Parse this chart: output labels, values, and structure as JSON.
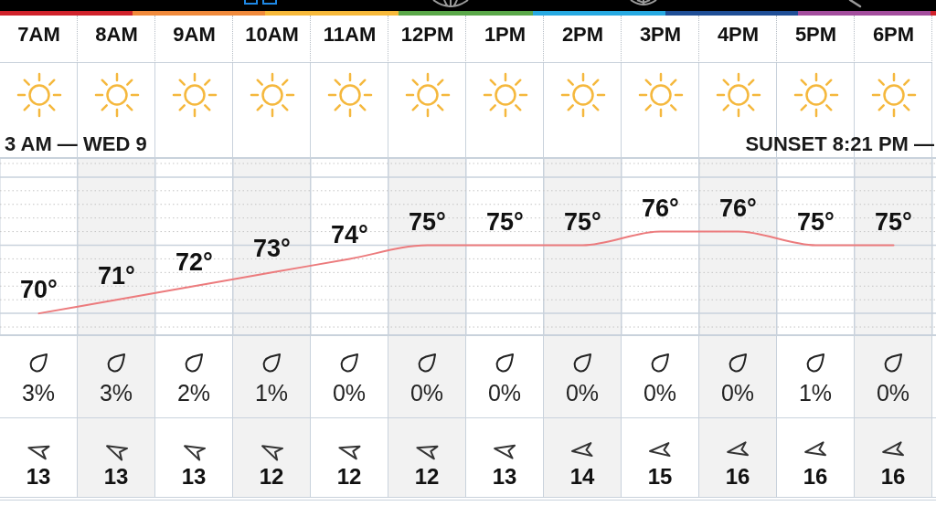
{
  "chart_data": [
    {
      "type": "line",
      "categories": [
        "7AM",
        "8AM",
        "9AM",
        "10AM",
        "11AM",
        "12PM",
        "1PM",
        "2PM",
        "3PM",
        "4PM",
        "5PM",
        "6PM"
      ],
      "values": [
        70,
        71,
        72,
        73,
        74,
        75,
        75,
        75,
        76,
        76,
        75,
        75
      ],
      "color": "#ec7b7d",
      "value_labels": [
        "70°",
        "71°",
        "72°",
        "73°",
        "74°",
        "75°",
        "75°",
        "75°",
        "76°",
        "76°",
        "75°",
        "75°"
      ],
      "ylim": [
        68.4,
        81.4
      ],
      "yticks": [
        {
          "value": 69,
          "label": null
        },
        {
          "value": 70,
          "label": null
        },
        {
          "value": 71,
          "label": null
        },
        {
          "value": 72,
          "label": null
        },
        {
          "value": 73,
          "label": null
        },
        {
          "value": 74,
          "label": null
        },
        {
          "value": 75,
          "label": null
        },
        {
          "value": 76,
          "label": null
        },
        {
          "value": 77,
          "label": null
        },
        {
          "value": 78,
          "label": null
        },
        {
          "value": 79,
          "label": null
        },
        {
          "value": 80,
          "label": null
        },
        {
          "value": 81,
          "label": null
        }
      ],
      "grid": true,
      "tick_labels": "x",
      "bands": [
        {
          "axis": "x",
          "from": "8AM",
          "to": "8AM",
          "color": "#f2f2f2"
        },
        {
          "axis": "x",
          "from": "10AM",
          "to": "10AM",
          "color": "#f2f2f2"
        },
        {
          "axis": "x",
          "from": "12PM",
          "to": "12PM",
          "color": "#f2f2f2"
        },
        {
          "axis": "x",
          "from": "2PM",
          "to": "2PM",
          "color": "#f2f2f2"
        },
        {
          "axis": "x",
          "from": "4PM",
          "to": "4PM",
          "color": "#f2f2f2"
        },
        {
          "axis": "x",
          "from": "6PM",
          "to": "6PM",
          "color": "#f2f2f2"
        }
      ],
      "annotations": [
        "3 AM — WED 9",
        "SUNSET 8:21 PM —"
      ]
    },
    {
      "type": "other",
      "values": [
        3,
        3,
        2,
        1,
        0,
        0,
        0,
        0,
        0,
        0,
        1,
        0
      ],
      "value_labels": [
        "3%",
        "3%",
        "2%",
        "1%",
        "0%",
        "0%",
        "0%",
        "0%",
        "0%",
        "0%",
        "1%",
        "0%"
      ]
    },
    {
      "type": "other",
      "values": [
        13,
        13,
        13,
        12,
        12,
        12,
        13,
        14,
        15,
        16,
        16,
        16
      ],
      "data_labels": true
    }
  ]
}
